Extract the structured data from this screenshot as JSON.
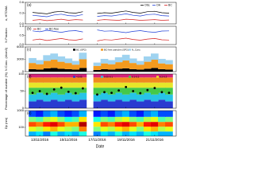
{
  "chart_data": [
    {
      "type": "line",
      "label": "(a)",
      "ylabel": "κ, HTDMA",
      "legend": "top-right",
      "x": [
        12.5,
        13,
        13.5,
        14,
        14.5,
        15,
        15.5,
        16,
        16.5,
        17,
        17.5,
        18,
        18.5,
        19,
        19.5,
        20,
        20.5,
        21,
        21.5,
        22
      ],
      "ylim": [
        0,
        0.6
      ],
      "yticks": [
        {
          "value": 0,
          "label": "0.0"
        },
        0.3,
        0.6
      ],
      "series": [
        {
          "name": "Obs.",
          "color": "#000000",
          "values": [
            0.32,
            0.3,
            0.28,
            0.33,
            0.35,
            0.31,
            0.3,
            0.34,
            null,
            0.29,
            0.31,
            0.3,
            0.33,
            0.36,
            0.32,
            0.3,
            0.34,
            0.35,
            0.31,
            0.3
          ]
        },
        {
          "name": "OA",
          "color": "#1f3fd6",
          "values": [
            0.24,
            0.22,
            0.2,
            0.25,
            0.27,
            0.23,
            0.22,
            0.26,
            null,
            0.21,
            0.23,
            0.22,
            0.25,
            0.28,
            0.24,
            0.22,
            0.26,
            0.27,
            0.23,
            0.22
          ]
        },
        {
          "name": "BC",
          "color": "#d62020",
          "values": [
            0.1,
            0.12,
            0.09,
            0.11,
            0.13,
            0.1,
            0.12,
            0.11,
            null,
            0.1,
            0.12,
            0.11,
            0.1,
            0.13,
            0.12,
            0.1,
            0.11,
            0.12,
            0.1,
            0.11
          ]
        }
      ]
    },
    {
      "type": "line",
      "label": "(b)",
      "ylabel": "N Fraction",
      "legend": "top-left",
      "x": [
        12.5,
        13,
        13.5,
        14,
        14.5,
        15,
        15.5,
        16,
        16.5,
        17,
        17.5,
        18,
        18.5,
        19,
        19.5,
        20,
        20.5,
        21,
        21.5,
        22
      ],
      "ylim": [
        0,
        1
      ],
      "yticks": [
        {
          "value": 0,
          "label": "0.0"
        },
        0.5,
        {
          "value": 1,
          "label": "1.0"
        }
      ],
      "series": [
        {
          "name": "BC",
          "color": "#d62020",
          "values": [
            0.25,
            0.3,
            0.22,
            0.28,
            0.33,
            0.26,
            0.24,
            0.31,
            null,
            0.2,
            0.27,
            0.25,
            0.3,
            0.35,
            0.28,
            0.24,
            0.3,
            0.33,
            0.26,
            0.25
          ]
        },
        {
          "name": "BC-free",
          "color": "#1f3fd6",
          "values": [
            0.75,
            0.7,
            0.78,
            0.72,
            0.67,
            0.74,
            0.76,
            0.69,
            null,
            0.8,
            0.73,
            0.75,
            0.7,
            0.65,
            0.72,
            0.76,
            0.7,
            0.67,
            0.74,
            0.75
          ]
        }
      ]
    },
    {
      "type": "area",
      "label": "(c)",
      "ylabel": "N Conc. (#/cm3)",
      "legend": "top",
      "x": [
        12.5,
        13,
        13.5,
        14,
        14.5,
        15,
        15.5,
        16,
        16.5,
        17,
        17.5,
        18,
        18.5,
        19,
        19.5,
        20,
        20.5,
        21,
        21.5,
        22
      ],
      "ylim": [
        0,
        6000
      ],
      "yticks": [
        0,
        3000,
        6000
      ],
      "series": [
        {
          "name": "BC (SP2)",
          "color": "#000000",
          "values": [
            600,
            500,
            800,
            900,
            700,
            600,
            500,
            900,
            null,
            400,
            600,
            500,
            700,
            800,
            600,
            500,
            700,
            900,
            600,
            500
          ]
        },
        {
          "name": "BC-free particles (SP2)",
          "color": "#f39a1e",
          "values": [
            1500,
            1300,
            1800,
            2000,
            1700,
            1500,
            1200,
            2100,
            null,
            1000,
            1400,
            1300,
            1600,
            1900,
            1500,
            1200,
            1700,
            2000,
            1400,
            1300
          ]
        },
        {
          "name": "N_Conc",
          "color": "#9fd3f0",
          "values": [
            1200,
            1000,
            1400,
            1500,
            1300,
            1100,
            900,
            1600,
            null,
            800,
            1100,
            1000,
            1200,
            1400,
            1100,
            900,
            1300,
            1500,
            1100,
            1000
          ]
        }
      ]
    },
    {
      "type": "area",
      "label": "(d)",
      "ylabel": "Percentage of number (%)",
      "legend": "top",
      "x": [
        12.5,
        13,
        13.5,
        14,
        14.5,
        15,
        15.5,
        16,
        16.5,
        17,
        17.5,
        18,
        18.5,
        19,
        19.5,
        20,
        20.5,
        21,
        21.5,
        22
      ],
      "ylim": [
        0,
        100
      ],
      "yticks": [
        0,
        50,
        100
      ],
      "series": [
        {
          "name": "<0.05",
          "color": "#2a3bd0",
          "values": [
            20,
            25,
            20,
            25,
            20,
            25,
            20,
            25,
            null,
            20,
            25,
            20,
            25,
            20,
            25,
            20,
            25,
            20,
            25,
            20
          ]
        },
        {
          "name": "0.05-0.1",
          "color": "#27c4e6",
          "values": [
            20,
            20,
            20,
            20,
            20,
            20,
            20,
            20,
            null,
            20,
            20,
            20,
            20,
            20,
            20,
            20,
            20,
            20,
            20,
            20
          ]
        },
        {
          "name": "0.1-0.2",
          "color": "#44c84a",
          "values": [
            20,
            15,
            20,
            15,
            20,
            15,
            20,
            15,
            null,
            20,
            15,
            20,
            15,
            20,
            15,
            20,
            15,
            20,
            15,
            20
          ]
        },
        {
          "name": "0.2-0.3",
          "color": "#e6e62a",
          "values": [
            15,
            15,
            15,
            15,
            15,
            15,
            15,
            15,
            null,
            15,
            15,
            15,
            15,
            15,
            15,
            15,
            15,
            15,
            15,
            15
          ]
        },
        {
          "name": "0.3-0.4",
          "color": "#f08a1e",
          "values": [
            15,
            15,
            15,
            15,
            15,
            15,
            15,
            15,
            null,
            15,
            15,
            15,
            15,
            15,
            15,
            15,
            15,
            15,
            15,
            15
          ]
        },
        {
          "name": ">0.4",
          "color": "#d6227a",
          "values": [
            10,
            10,
            10,
            10,
            10,
            10,
            10,
            10,
            null,
            10,
            10,
            10,
            10,
            10,
            10,
            10,
            10,
            10,
            10,
            10
          ]
        },
        {
          "name": "Percentage of BC number concentration",
          "color": "#000000",
          "style": "dots",
          "values": [
            45,
            50,
            42,
            55,
            60,
            48,
            44,
            58,
            null,
            40,
            47,
            45,
            52,
            62,
            50,
            44,
            53,
            59,
            47,
            45
          ]
        }
      ]
    },
    {
      "type": "heatmap",
      "label": "(e)",
      "ylabel": "Dp (nm)",
      "log": true,
      "x": [
        12.5,
        13,
        13.5,
        14,
        14.5,
        15,
        15.5,
        16,
        16.5,
        17,
        17.5,
        18,
        18.5,
        19,
        19.5,
        20,
        20.5,
        21,
        21.5,
        22
      ],
      "y": [
        40,
        80,
        150,
        300,
        600
      ],
      "ylim": [
        30,
        1000
      ],
      "yticks": [
        100,
        1000
      ],
      "zlim": [
        0,
        1
      ],
      "z": [
        [
          0.3,
          0.35,
          0.25,
          0.4,
          0.3,
          0.35,
          0.3,
          0.4,
          null,
          0.25,
          0.35,
          0.3,
          0.4,
          0.3,
          0.35,
          0.3,
          0.4,
          0.35,
          0.3,
          0.3
        ],
        [
          0.6,
          0.55,
          0.65,
          0.7,
          0.6,
          0.55,
          0.5,
          0.75,
          null,
          0.5,
          0.6,
          0.55,
          0.65,
          0.7,
          0.6,
          0.5,
          0.65,
          0.7,
          0.55,
          0.6
        ],
        [
          0.8,
          0.75,
          0.85,
          0.9,
          0.8,
          0.7,
          0.7,
          0.95,
          null,
          0.65,
          0.8,
          0.75,
          0.85,
          0.9,
          0.8,
          0.7,
          0.85,
          0.9,
          0.75,
          0.8
        ],
        [
          0.5,
          0.45,
          0.55,
          0.6,
          0.5,
          0.4,
          0.45,
          0.65,
          null,
          0.4,
          0.5,
          0.45,
          0.55,
          0.6,
          0.5,
          0.45,
          0.55,
          0.6,
          0.45,
          0.5
        ],
        [
          0.2,
          0.15,
          0.25,
          0.3,
          0.2,
          0.15,
          0.2,
          0.3,
          null,
          0.15,
          0.2,
          0.15,
          0.25,
          0.3,
          0.2,
          0.15,
          0.25,
          0.3,
          0.2,
          0.2
        ]
      ]
    }
  ],
  "xlim": [
    12,
    22.5
  ],
  "xticks": [
    {
      "value": 13,
      "label": "13/11/2016"
    },
    {
      "value": 15,
      "label": "15/11/2016"
    },
    {
      "value": 17,
      "label": "17/11/2016"
    },
    {
      "value": 19,
      "label": "19/11/2016"
    },
    {
      "value": 21,
      "label": "21/11/2016"
    }
  ],
  "xlabel": "Date"
}
